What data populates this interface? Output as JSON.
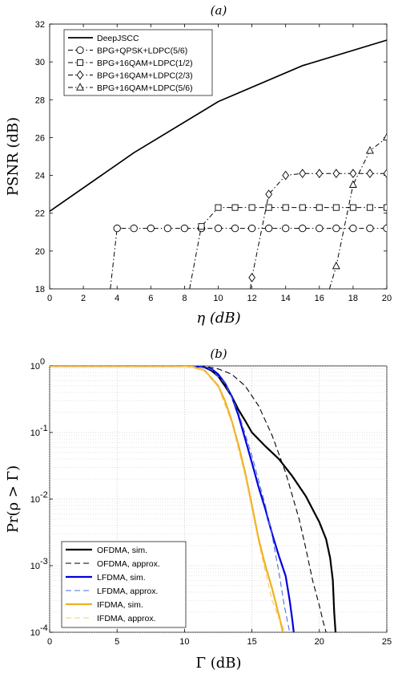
{
  "chart_data": [
    {
      "type": "line",
      "panel_label": "(a)",
      "xlabel": "η (dB)",
      "ylabel": "PSNR (dB)",
      "xlim": [
        0,
        20
      ],
      "ylim": [
        18,
        32
      ],
      "xticks": [
        0,
        2,
        4,
        6,
        8,
        10,
        12,
        14,
        16,
        18,
        20
      ],
      "yticks": [
        18,
        20,
        22,
        24,
        26,
        28,
        30,
        32
      ],
      "grid": false,
      "legend_position": "top-left",
      "series": [
        {
          "name": "DeepJSCC",
          "color": "#000000",
          "dash": "solid",
          "marker": "none",
          "x": [
            0,
            5,
            10,
            15,
            20
          ],
          "y": [
            22.1,
            25.2,
            27.9,
            29.8,
            31.15
          ]
        },
        {
          "name": "BPG+QPSK+LDPC(5/6)",
          "color": "#000000",
          "dash": "dashdot",
          "marker": "circle",
          "x": [
            3.6,
            4,
            5,
            6,
            7,
            8,
            9,
            10,
            11,
            12,
            13,
            14,
            15,
            16,
            17,
            18,
            19,
            20
          ],
          "y": [
            18,
            21.2,
            21.2,
            21.2,
            21.2,
            21.2,
            21.2,
            21.2,
            21.2,
            21.2,
            21.2,
            21.2,
            21.2,
            21.2,
            21.2,
            21.2,
            21.2,
            21.2
          ]
        },
        {
          "name": "BPG+16QAM+LDPC(1/2)",
          "color": "#000000",
          "dash": "dashdot",
          "marker": "square",
          "x": [
            8.3,
            9,
            10,
            11,
            12,
            13,
            14,
            15,
            16,
            17,
            18,
            19,
            20
          ],
          "y": [
            18,
            21.3,
            22.3,
            22.3,
            22.3,
            22.3,
            22.3,
            22.3,
            22.3,
            22.3,
            22.3,
            22.3,
            22.3
          ]
        },
        {
          "name": "BPG+16QAM+LDPC(2/3)",
          "color": "#000000",
          "dash": "dashdot",
          "marker": "diamond",
          "x": [
            11.9,
            12,
            13,
            14,
            15,
            16,
            17,
            18,
            19,
            20
          ],
          "y": [
            18,
            18.6,
            23.0,
            24.0,
            24.1,
            24.1,
            24.1,
            24.1,
            24.1,
            24.1
          ]
        },
        {
          "name": "BPG+16QAM+LDPC(5/6)",
          "color": "#000000",
          "dash": "dashdot",
          "marker": "triangle",
          "x": [
            16.6,
            17,
            18,
            19,
            20
          ],
          "y": [
            18,
            19.2,
            23.5,
            25.3,
            26.0
          ]
        }
      ]
    },
    {
      "type": "line",
      "panel_label": "(b)",
      "xlabel": "Γ (dB)",
      "ylabel": "Pr(ρ > Γ)",
      "xlim": [
        0,
        25
      ],
      "ylim": [
        0.0001,
        1
      ],
      "yscale": "log",
      "xticks": [
        0,
        5,
        10,
        15,
        20,
        25
      ],
      "yticks": [
        0.0001,
        0.001,
        0.01,
        0.1,
        1
      ],
      "ytick_labels": [
        [
          "10",
          "-4"
        ],
        [
          "10",
          "-3"
        ],
        [
          "10",
          "-2"
        ],
        [
          "10",
          "-1"
        ],
        [
          "10",
          "0"
        ]
      ],
      "grid": true,
      "legend_position": "bottom-left",
      "series": [
        {
          "name": "OFDMA, sim.",
          "color": "#000000",
          "dash": "solid",
          "width": 2.2,
          "x": [
            0,
            10,
            11,
            11.5,
            12,
            12.5,
            13,
            13.5,
            14,
            14.5,
            15,
            16,
            17,
            18,
            19,
            20,
            20.5,
            20.8,
            21.0,
            21.1,
            21.2
          ],
          "y": [
            1,
            1,
            0.98,
            0.95,
            0.85,
            0.7,
            0.5,
            0.35,
            0.22,
            0.15,
            0.1,
            0.062,
            0.04,
            0.022,
            0.011,
            0.0045,
            0.0025,
            0.0013,
            0.0006,
            0.0002,
            0.0001
          ]
        },
        {
          "name": "OFDMA, approx.",
          "color": "#000000",
          "dash": "dashed",
          "width": 1.1,
          "x": [
            0,
            10.5,
            11.5,
            12.5,
            13.5,
            14.5,
            15.5,
            16.5,
            17.5,
            18.5,
            19,
            19.5,
            20,
            20.3,
            20.5
          ],
          "y": [
            1,
            1,
            0.99,
            0.9,
            0.75,
            0.5,
            0.25,
            0.09,
            0.025,
            0.005,
            0.0018,
            0.0006,
            0.00025,
            0.00014,
            0.0001
          ]
        },
        {
          "name": "LFDMA, sim.",
          "color": "#0000e0",
          "dash": "solid",
          "width": 2.2,
          "x": [
            0,
            10,
            11,
            12,
            12.5,
            13,
            13.5,
            14,
            14.5,
            15,
            15.5,
            16,
            16.5,
            17,
            17.5,
            17.8,
            18.0,
            18.1
          ],
          "y": [
            1,
            1,
            0.99,
            0.9,
            0.75,
            0.55,
            0.35,
            0.18,
            0.08,
            0.035,
            0.015,
            0.007,
            0.003,
            0.0014,
            0.0007,
            0.0003,
            0.00015,
            0.0001
          ]
        },
        {
          "name": "LFDMA, approx.",
          "color": "#4d6fe0",
          "dash": "dashed",
          "width": 1.1,
          "x": [
            0,
            10,
            11,
            12,
            13,
            14,
            15,
            16,
            16.5,
            17,
            17.4,
            17.8
          ],
          "y": [
            1,
            1,
            0.99,
            0.88,
            0.55,
            0.2,
            0.045,
            0.008,
            0.0028,
            0.0008,
            0.00025,
            0.0001
          ]
        },
        {
          "name": "IFDMA, sim.",
          "color": "#f0b020",
          "dash": "solid",
          "width": 2.2,
          "x": [
            0,
            9.5,
            10.5,
            11.5,
            12.5,
            13,
            13.5,
            14,
            14.5,
            15,
            15.5,
            16,
            16.5,
            17,
            17.3
          ],
          "y": [
            1,
            1,
            0.98,
            0.85,
            0.5,
            0.3,
            0.15,
            0.065,
            0.025,
            0.008,
            0.0025,
            0.001,
            0.00045,
            0.00018,
            0.0001
          ]
        },
        {
          "name": "IFDMA, approx.",
          "color": "#f8cc68",
          "dash": "dashed",
          "width": 1.1,
          "x": [
            0,
            9.5,
            10.5,
            11.5,
            12.5,
            13.5,
            14.5,
            15.5,
            16.5,
            17,
            17.5
          ],
          "y": [
            1,
            1,
            0.98,
            0.84,
            0.48,
            0.14,
            0.022,
            0.0022,
            0.0003,
            0.00016,
            0.0001
          ]
        }
      ]
    }
  ]
}
